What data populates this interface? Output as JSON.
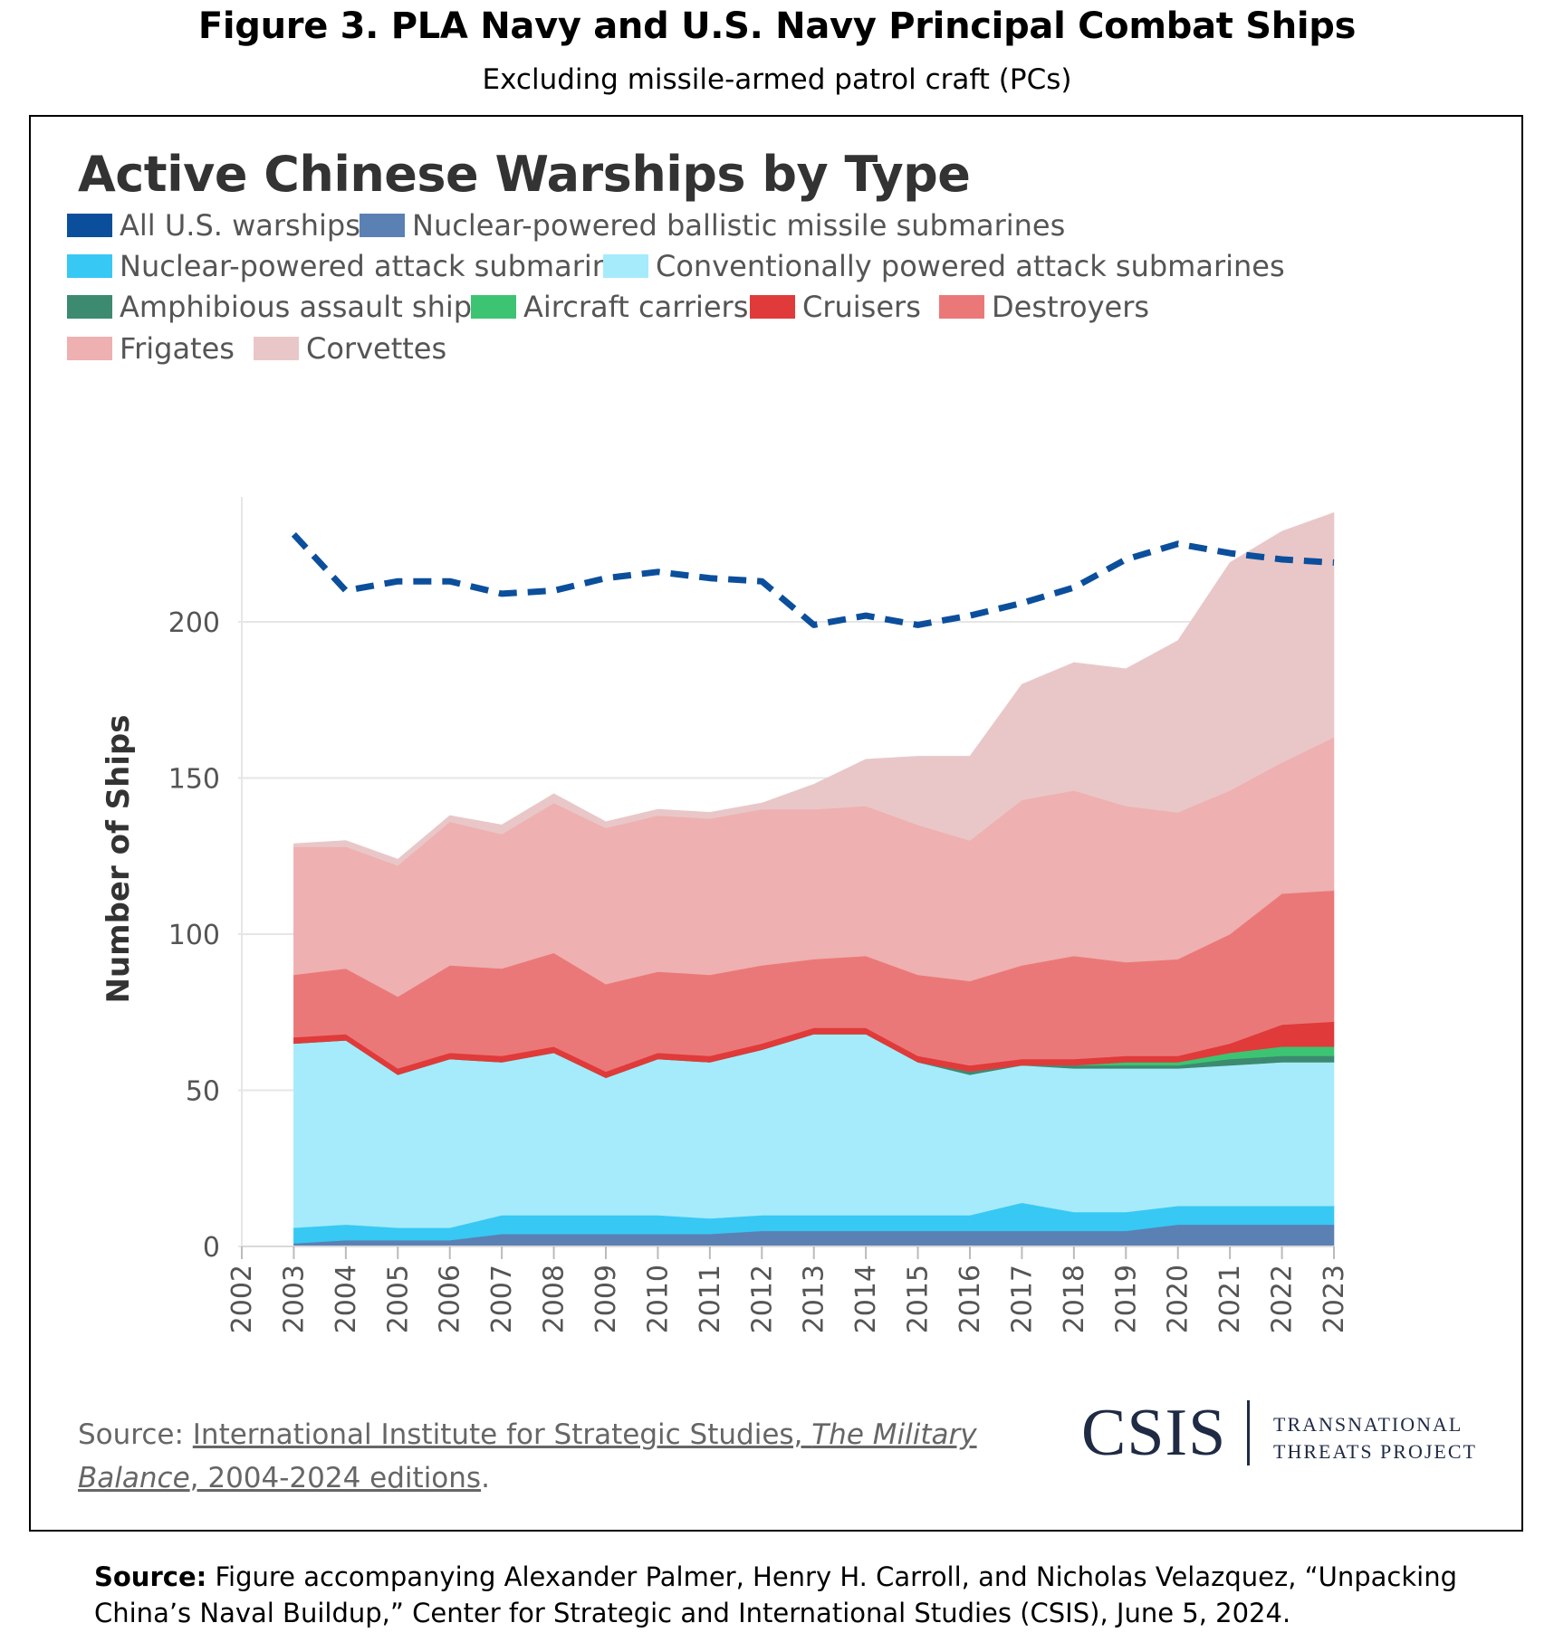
{
  "figure": {
    "title": "Figure 3. PLA Navy and U.S. Navy Principal Combat Ships",
    "subtitle": "Excluding missile-armed patrol craft (PCs)",
    "source_label": "Source:",
    "source_text": "Figure accompanying Alexander Palmer, Henry H. Carroll, and Nicholas Velazquez, “Unpacking China’s Naval Buildup,” Center for Strategic and International Studies (CSIS), June 5, 2024."
  },
  "chart_source": {
    "prefix": "Source: ",
    "link_part1": "International Institute for Strategic Studies, ",
    "link_italic": "The Military Balance",
    "link_part2": ", 2004-2024 editions",
    "suffix": "."
  },
  "logo": {
    "name": "CSIS",
    "line1": "TRANSNATIONAL",
    "line2": "THREATS PROJECT"
  },
  "chart_data": {
    "type": "area",
    "stacked": true,
    "title": "Active Chinese Warships by Type",
    "xlabel": "",
    "ylabel": "Number of Ships",
    "x": [
      2003,
      2004,
      2005,
      2006,
      2007,
      2008,
      2009,
      2010,
      2011,
      2012,
      2013,
      2014,
      2015,
      2016,
      2017,
      2018,
      2019,
      2020,
      2021,
      2022,
      2023
    ],
    "xlim": [
      2002,
      2023
    ],
    "xticks": [
      "2002",
      "2003",
      "2004",
      "2005",
      "2006",
      "2007",
      "2008",
      "2009",
      "2010",
      "2011",
      "2012",
      "2013",
      "2014",
      "2015",
      "2016",
      "2017",
      "2018",
      "2019",
      "2020",
      "2021",
      "2022",
      "2023"
    ],
    "ylim": [
      0,
      240
    ],
    "yticks": [
      0,
      50,
      100,
      150,
      200
    ],
    "grid": "horizontal",
    "legend_position": "top-left",
    "legend": [
      {
        "label": "All U.S. warships",
        "color": "#0b4f9c"
      },
      {
        "label": "Nuclear-powered ballistic missile submarines",
        "color": "#5b80b4"
      },
      {
        "label": "Nuclear-powered attack submarines",
        "color": "#38c8f4"
      },
      {
        "label": "Conventionally powered attack submarines",
        "color": "#a6ebfb"
      },
      {
        "label": "Amphibious assault ships",
        "color": "#3c8a70"
      },
      {
        "label": "Aircraft carriers",
        "color": "#3cc472"
      },
      {
        "label": "Cruisers",
        "color": "#e03a3a"
      },
      {
        "label": "Destroyers",
        "color": "#eb7878"
      },
      {
        "label": "Frigates",
        "color": "#eeb0b0"
      },
      {
        "label": "Corvettes",
        "color": "#e9c7c8"
      }
    ],
    "series": [
      {
        "name": "Nuclear-powered ballistic missile submarines",
        "color": "#5b80b4",
        "values": [
          1,
          2,
          2,
          2,
          4,
          4,
          4,
          4,
          4,
          5,
          5,
          5,
          5,
          5,
          5,
          5,
          5,
          7,
          7,
          7,
          7
        ]
      },
      {
        "name": "Nuclear-powered attack submarines",
        "color": "#38c8f4",
        "values": [
          5,
          5,
          4,
          4,
          6,
          6,
          6,
          6,
          5,
          5,
          5,
          5,
          5,
          5,
          9,
          6,
          6,
          6,
          6,
          6,
          6
        ]
      },
      {
        "name": "Conventionally powered attack submarines",
        "color": "#a6ebfb",
        "values": [
          59,
          59,
          49,
          54,
          49,
          52,
          44,
          50,
          50,
          53,
          58,
          58,
          49,
          45,
          44,
          46,
          46,
          44,
          45,
          46,
          46
        ]
      },
      {
        "name": "Amphibious assault ships",
        "color": "#3c8a70",
        "values": [
          0,
          0,
          0,
          0,
          0,
          0,
          0,
          0,
          0,
          0,
          0,
          0,
          0,
          1,
          0,
          1,
          1,
          1,
          2,
          2,
          2
        ]
      },
      {
        "name": "Aircraft carriers",
        "color": "#3cc472",
        "values": [
          0,
          0,
          0,
          0,
          0,
          0,
          0,
          0,
          0,
          0,
          0,
          0,
          0,
          0,
          0,
          0,
          1,
          1,
          2,
          3,
          3
        ]
      },
      {
        "name": "Cruisers",
        "color": "#e03a3a",
        "values": [
          2,
          2,
          2,
          2,
          2,
          2,
          2,
          2,
          2,
          2,
          2,
          2,
          2,
          2,
          2,
          2,
          2,
          2,
          3,
          7,
          8
        ]
      },
      {
        "name": "Destroyers",
        "color": "#eb7878",
        "values": [
          20,
          21,
          23,
          28,
          28,
          30,
          28,
          26,
          26,
          25,
          22,
          23,
          26,
          27,
          30,
          33,
          30,
          31,
          35,
          42,
          42
        ]
      },
      {
        "name": "Frigates",
        "color": "#eeb0b0",
        "values": [
          41,
          39,
          42,
          46,
          43,
          48,
          50,
          50,
          50,
          50,
          48,
          48,
          48,
          45,
          53,
          53,
          50,
          47,
          46,
          42,
          49
        ]
      },
      {
        "name": "Corvettes",
        "color": "#e9c7c8",
        "values": [
          1,
          2,
          2,
          2,
          3,
          3,
          2,
          2,
          2,
          2,
          8,
          15,
          22,
          27,
          37,
          41,
          44,
          55,
          73,
          74,
          72
        ]
      }
    ],
    "line_series": {
      "name": "All U.S. warships",
      "color": "#0b4f9c",
      "style": "dashed",
      "values": [
        228,
        210,
        213,
        213,
        209,
        210,
        214,
        216,
        214,
        213,
        199,
        202,
        199,
        202,
        206,
        211,
        220,
        225,
        222,
        220,
        219
      ]
    }
  }
}
